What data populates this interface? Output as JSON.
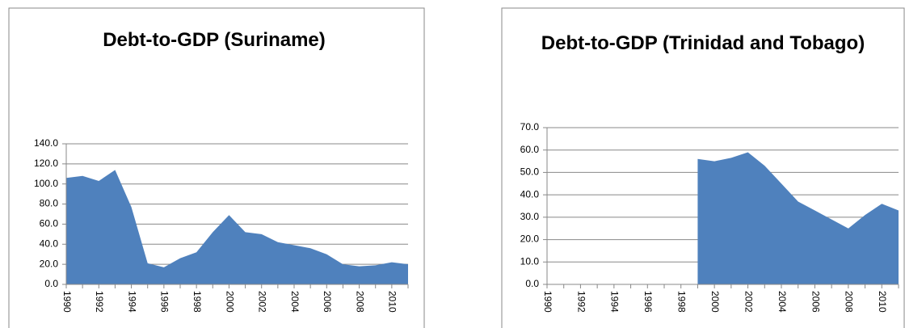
{
  "chart_data": [
    {
      "type": "area",
      "title": "Debt-to-GDP (Suriname)",
      "categories": [
        "1990",
        null,
        "1992",
        null,
        "1994",
        null,
        "1996",
        null,
        "1998",
        null,
        "2000",
        null,
        "2002",
        null,
        "2004",
        null,
        "2006",
        null,
        "2008",
        null,
        "2010",
        null
      ],
      "series": [
        {
          "name": "Suriname",
          "color": "#4f81bd",
          "values": [
            106,
            108,
            103,
            114,
            77,
            21,
            17,
            26,
            32,
            52,
            69,
            52,
            50,
            42,
            39,
            36,
            30,
            20,
            18,
            19,
            22,
            20
          ]
        }
      ],
      "ylim": [
        0,
        140
      ],
      "yticks": [
        {
          "value": 0,
          "label": "0.0"
        },
        {
          "value": 20,
          "label": "20.0"
        },
        {
          "value": 40,
          "label": "40.0"
        },
        {
          "value": 60,
          "label": "60.0"
        },
        {
          "value": 80,
          "label": "80.0"
        },
        {
          "value": 100,
          "label": "100.0"
        },
        {
          "value": 120,
          "label": "120.0"
        },
        {
          "value": 140,
          "label": "140.0"
        }
      ],
      "grid": true
    },
    {
      "type": "area",
      "title": "Debt-to-GDP (Trinidad and Tobago)",
      "categories": [
        "1990",
        null,
        "1992",
        null,
        "1994",
        null,
        "1996",
        null,
        "1998",
        null,
        "2000",
        null,
        "2002",
        null,
        "2004",
        null,
        "2006",
        null,
        "2008",
        null,
        "2010",
        null
      ],
      "series": [
        {
          "name": "Trinidad and Tobago",
          "color": "#4f81bd",
          "values": [
            null,
            null,
            null,
            null,
            null,
            null,
            null,
            null,
            null,
            56,
            55,
            56.5,
            59,
            53,
            45,
            37,
            33,
            29,
            25,
            31,
            36,
            33
          ]
        }
      ],
      "ylim": [
        0,
        70
      ],
      "yticks": [
        {
          "value": 0,
          "label": "0.0"
        },
        {
          "value": 10,
          "label": "10.0"
        },
        {
          "value": 20,
          "label": "20.0"
        },
        {
          "value": 30,
          "label": "30.0"
        },
        {
          "value": 40,
          "label": "40.0"
        },
        {
          "value": 50,
          "label": "50.0"
        },
        {
          "value": 60,
          "label": "60.0"
        },
        {
          "value": 70,
          "label": "70.0"
        }
      ],
      "grid": true
    }
  ]
}
